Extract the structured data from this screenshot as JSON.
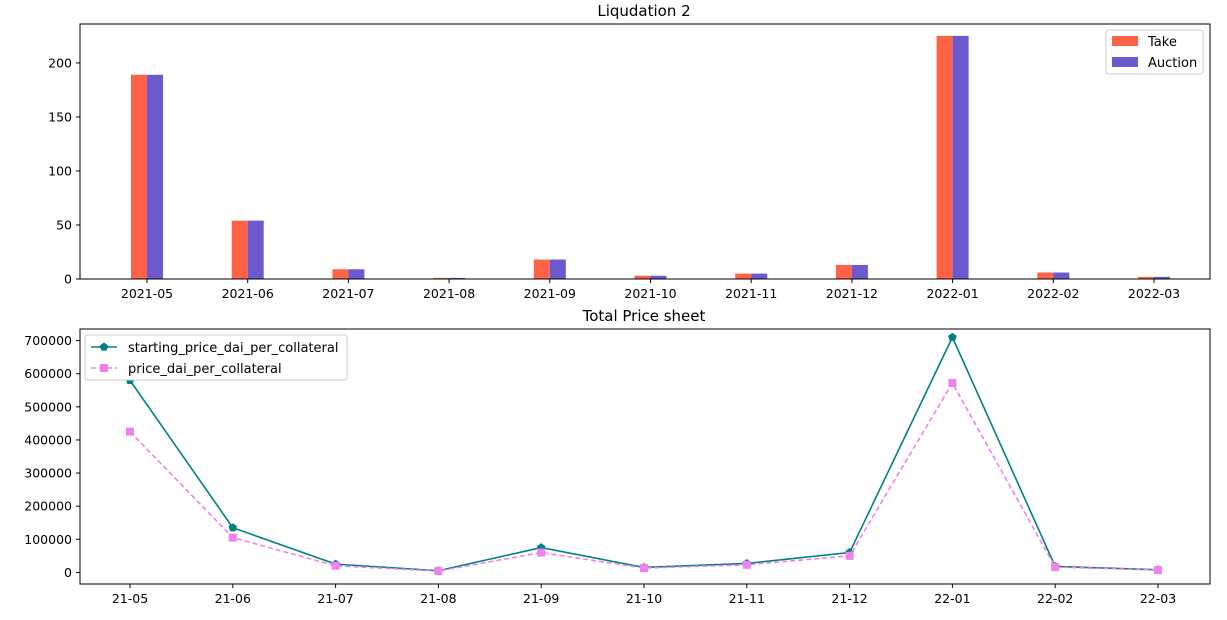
{
  "chart_data": [
    {
      "type": "bar",
      "title": "Liqudation 2",
      "xlabel": "",
      "ylabel": "",
      "categories": [
        "2021-05",
        "2021-06",
        "2021-07",
        "2021-08",
        "2021-09",
        "2021-10",
        "2021-11",
        "2021-12",
        "2022-01",
        "2022-02",
        "2022-03"
      ],
      "series": [
        {
          "name": "Take",
          "values": [
            189,
            54,
            9,
            1,
            18,
            3,
            5,
            13,
            225,
            6,
            2
          ]
        },
        {
          "name": "Auction",
          "values": [
            189,
            54,
            9,
            1,
            18,
            3,
            5,
            13,
            225,
            6,
            2
          ]
        }
      ],
      "yticks": [
        0,
        50,
        100,
        150,
        200
      ],
      "ylim": [
        0,
        236
      ],
      "legend_position": "top-right",
      "grid": false,
      "colors": {
        "Take": "#ff6347",
        "Auction": "#6a5acd"
      }
    },
    {
      "type": "line",
      "title": "Total Price sheet",
      "xlabel": "",
      "ylabel": "",
      "categories": [
        "21-05",
        "21-06",
        "21-07",
        "21-08",
        "21-09",
        "21-10",
        "21-11",
        "21-12",
        "22-01",
        "22-02",
        "22-03"
      ],
      "series": [
        {
          "name": "starting_price_dai_per_collateral",
          "values": [
            580000,
            135000,
            25000,
            5000,
            75000,
            15000,
            27000,
            60000,
            710000,
            18000,
            8000
          ]
        },
        {
          "name": "price_dai_per_collateral",
          "values": [
            425000,
            105000,
            20000,
            4000,
            60000,
            13000,
            23000,
            50000,
            572000,
            16000,
            7000
          ]
        }
      ],
      "yticks": [
        0,
        100000,
        200000,
        300000,
        400000,
        500000,
        600000,
        700000
      ],
      "ylim": [
        -35000,
        735000
      ],
      "legend_position": "top-left",
      "grid": false,
      "colors": {
        "starting_price_dai_per_collateral": "#008080",
        "price_dai_per_collateral": "#ee82ee"
      },
      "markers": {
        "starting_price_dai_per_collateral": "pentagon",
        "price_dai_per_collateral": "square"
      },
      "line_styles": {
        "starting_price_dai_per_collateral": "solid",
        "price_dai_per_collateral": "dashed"
      }
    }
  ]
}
